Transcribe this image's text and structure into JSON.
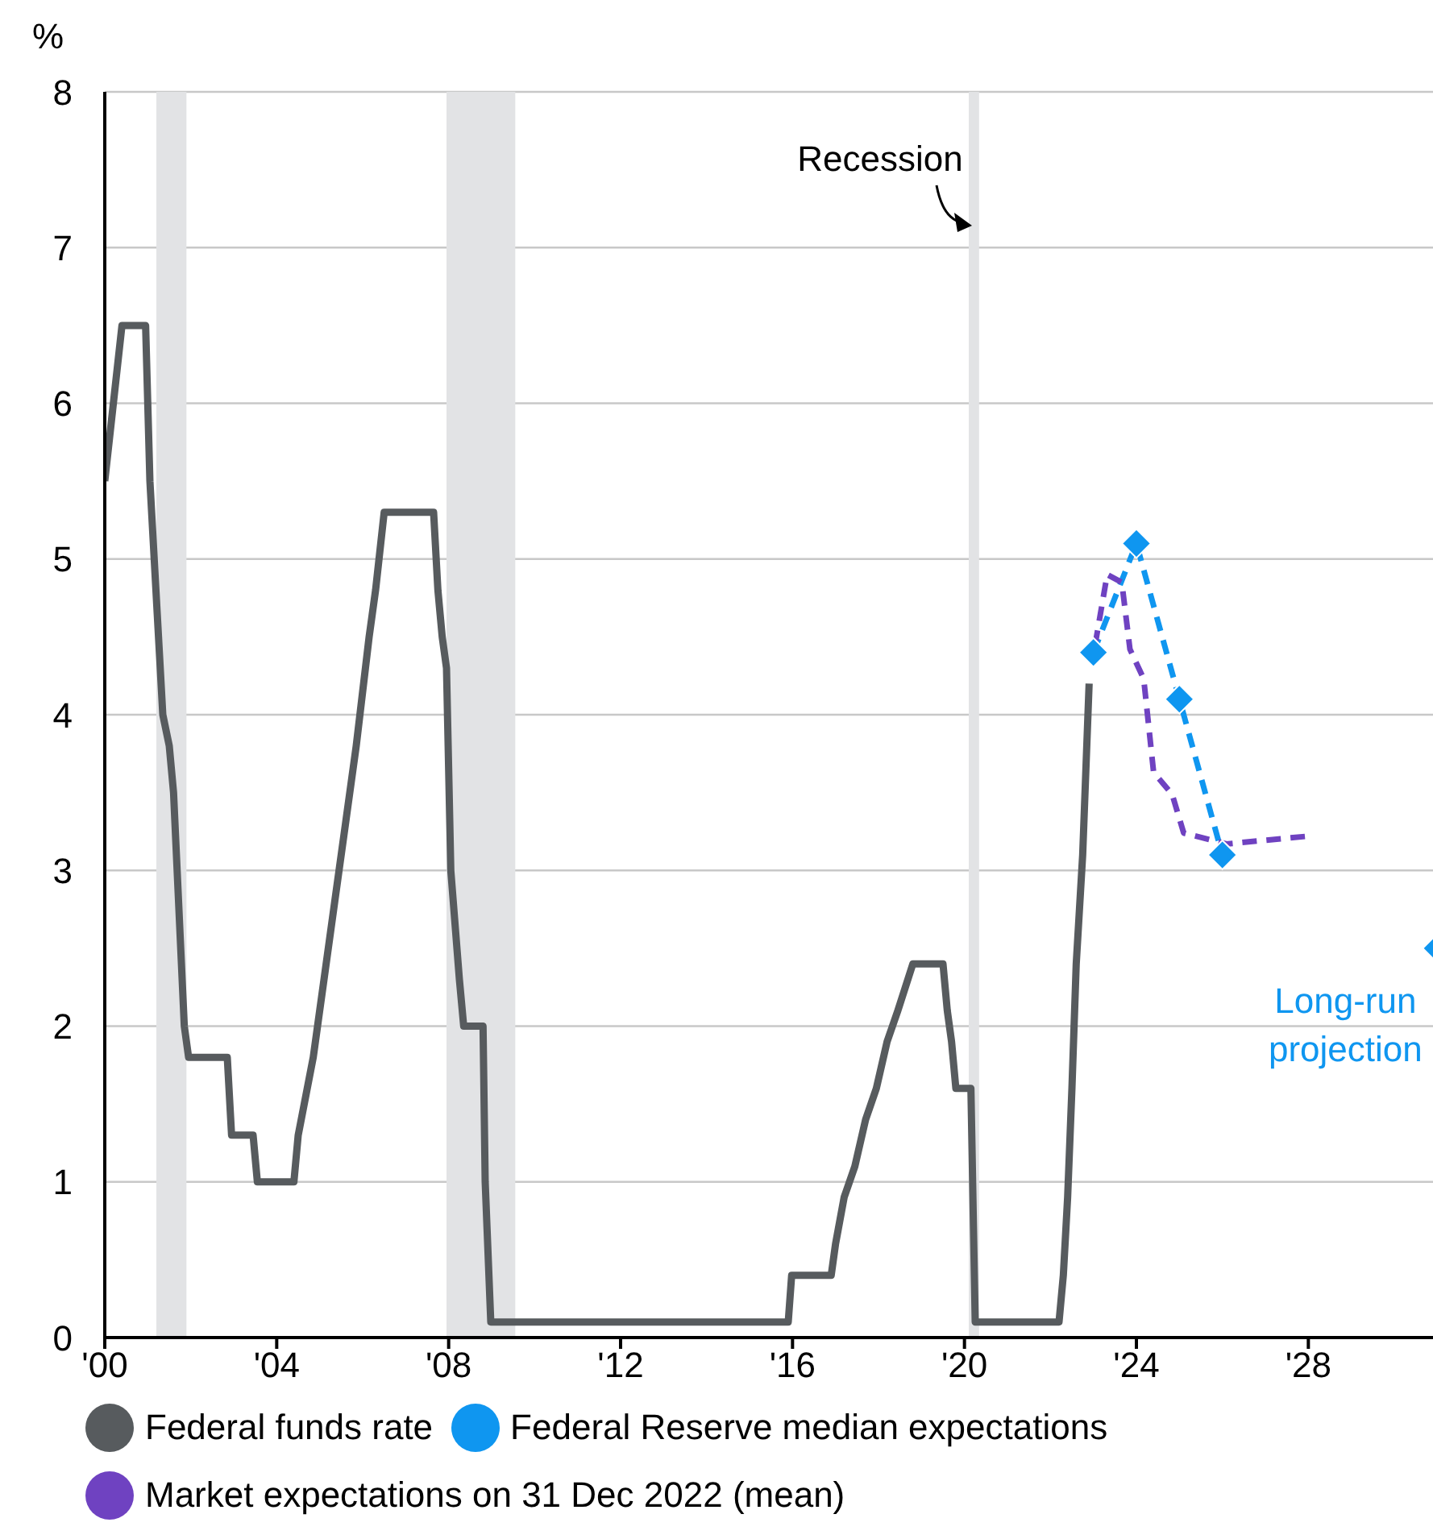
{
  "chart_data": {
    "type": "line",
    "ylabel": "%",
    "xlim": [
      2000,
      2031.2
    ],
    "xticks": [
      {
        "value": 2000,
        "label": "'00"
      },
      {
        "value": 2004,
        "label": "'04"
      },
      {
        "value": 2008,
        "label": "'08"
      },
      {
        "value": 2012,
        "label": "'12"
      },
      {
        "value": 2016,
        "label": "'16"
      },
      {
        "value": 2020,
        "label": "'20"
      },
      {
        "value": 2024,
        "label": "'24"
      },
      {
        "value": 2028,
        "label": "'28"
      }
    ],
    "ylim": [
      0,
      8
    ],
    "yticks": [
      0,
      1,
      2,
      3,
      4,
      5,
      6,
      7,
      8
    ],
    "grid": "y",
    "legend": "bottom",
    "series": [
      {
        "name": "Federal funds rate",
        "color": "#575b5e",
        "marker": "none",
        "line_style": "solid",
        "x": [
          2000,
          2000.2,
          2000.4,
          2000.95,
          2001.05,
          2001.35,
          2001.5,
          2001.6,
          2001.85,
          2001.95,
          2002.85,
          2002.95,
          2003.45,
          2003.55,
          2004.4,
          2004.5,
          2004.85,
          2005.1,
          2005.35,
          2005.6,
          2005.85,
          2006.15,
          2006.3,
          2006.5,
          2007.65,
          2007.75,
          2007.85,
          2007.95,
          2008.05,
          2008.25,
          2008.35,
          2008.8,
          2008.85,
          2008.98,
          2015.9,
          2015.98,
          2016.9,
          2017.0,
          2017.2,
          2017.45,
          2017.7,
          2017.95,
          2018.2,
          2018.45,
          2018.8,
          2019.5,
          2019.6,
          2019.7,
          2019.8,
          2020.15,
          2020.25,
          2022.2,
          2022.3,
          2022.4,
          2022.5,
          2022.6,
          2022.75,
          2022.9
        ],
        "values": [
          5.5,
          6.0,
          6.5,
          6.5,
          5.5,
          4.0,
          3.8,
          3.5,
          2.0,
          1.8,
          1.8,
          1.3,
          1.3,
          1.0,
          1.0,
          1.3,
          1.8,
          2.3,
          2.8,
          3.3,
          3.8,
          4.5,
          4.8,
          5.3,
          5.3,
          4.8,
          4.5,
          4.3,
          3.0,
          2.3,
          2.0,
          2.0,
          1.0,
          0.1,
          0.1,
          0.4,
          0.4,
          0.6,
          0.9,
          1.1,
          1.4,
          1.6,
          1.9,
          2.1,
          2.4,
          2.4,
          2.1,
          1.9,
          1.6,
          1.6,
          0.1,
          0.1,
          0.4,
          0.9,
          1.6,
          2.4,
          3.1,
          4.2
        ]
      },
      {
        "name": "Federal Reserve median expectations",
        "color": "#0f96f0",
        "marker": "diamond",
        "line_style": "dashed",
        "x": [
          2023,
          2024,
          2025,
          2026,
          2027,
          2031
        ],
        "values": [
          4.4,
          5.1,
          4.1,
          3.1,
          null,
          2.5
        ]
      },
      {
        "name": "Market expectations on 31 Dec 2022 (mean)",
        "color": "#6f42c1",
        "marker": "none",
        "line_style": "dashed",
        "x": [
          2023.04,
          2023.32,
          2023.66,
          2023.85,
          2024.17,
          2024.4,
          2024.83,
          2025.1,
          2026.1,
          2028
        ],
        "values": [
          4.45,
          4.9,
          4.85,
          4.42,
          4.23,
          3.63,
          3.49,
          3.24,
          3.17,
          3.22
        ]
      }
    ],
    "bands": [
      {
        "axis": "x",
        "from": 2001.2,
        "to": 2001.9,
        "color": "#e2e3e5"
      },
      {
        "axis": "x",
        "from": 2007.95,
        "to": 2009.55,
        "color": "#e2e3e5"
      },
      {
        "axis": "x",
        "from": 2020.1,
        "to": 2020.34,
        "label": "Recession",
        "color": "#e2e3e5"
      }
    ],
    "annotations": [
      {
        "text": "Long-run projection",
        "x": 2031,
        "y": 2.5
      }
    ]
  }
}
